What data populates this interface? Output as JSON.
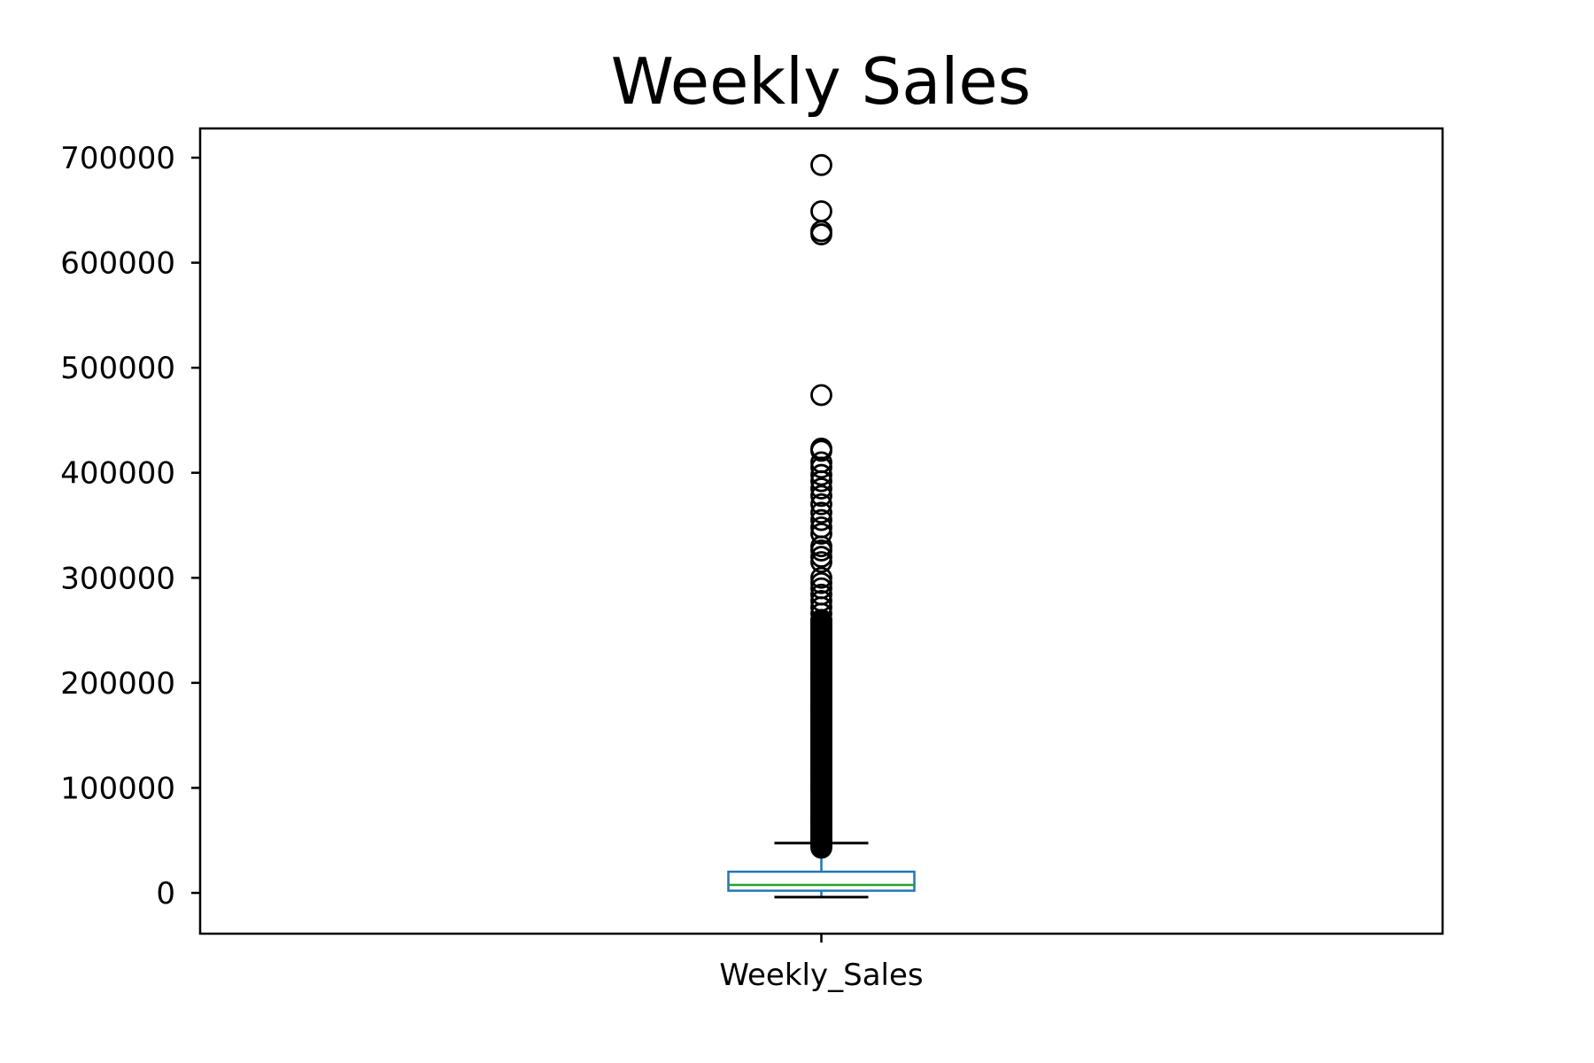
{
  "chart_data": {
    "type": "box",
    "title": "Weekly Sales",
    "categories": [
      "Weekly_Sales"
    ],
    "ylim": [
      -40000,
      730000
    ],
    "yticks": [
      0,
      100000,
      200000,
      300000,
      400000,
      500000,
      600000,
      700000
    ],
    "ytick_labels": [
      "0",
      "100000",
      "200000",
      "300000",
      "400000",
      "500000",
      "600000",
      "700000"
    ],
    "box": {
      "whisker_low": -4000,
      "q1": 2100,
      "median": 7600,
      "q3": 20200,
      "whisker_high": 47400
    },
    "outliers": [
      693000,
      649000,
      630000,
      627000,
      474000,
      423000,
      421000,
      410000,
      405000,
      398000,
      392000,
      385000,
      378000,
      370000,
      362000,
      355000,
      348000,
      342000,
      330000,
      326000,
      320000,
      315000,
      300000,
      295000,
      290000,
      284000,
      278000,
      272000,
      266000,
      260000
    ],
    "outlier_dense_range": [
      43000,
      260000
    ],
    "colors": {
      "box": "#1f77b4",
      "median": "#2ca02c",
      "whisker": "#000000",
      "outlier": "#000000"
    }
  }
}
